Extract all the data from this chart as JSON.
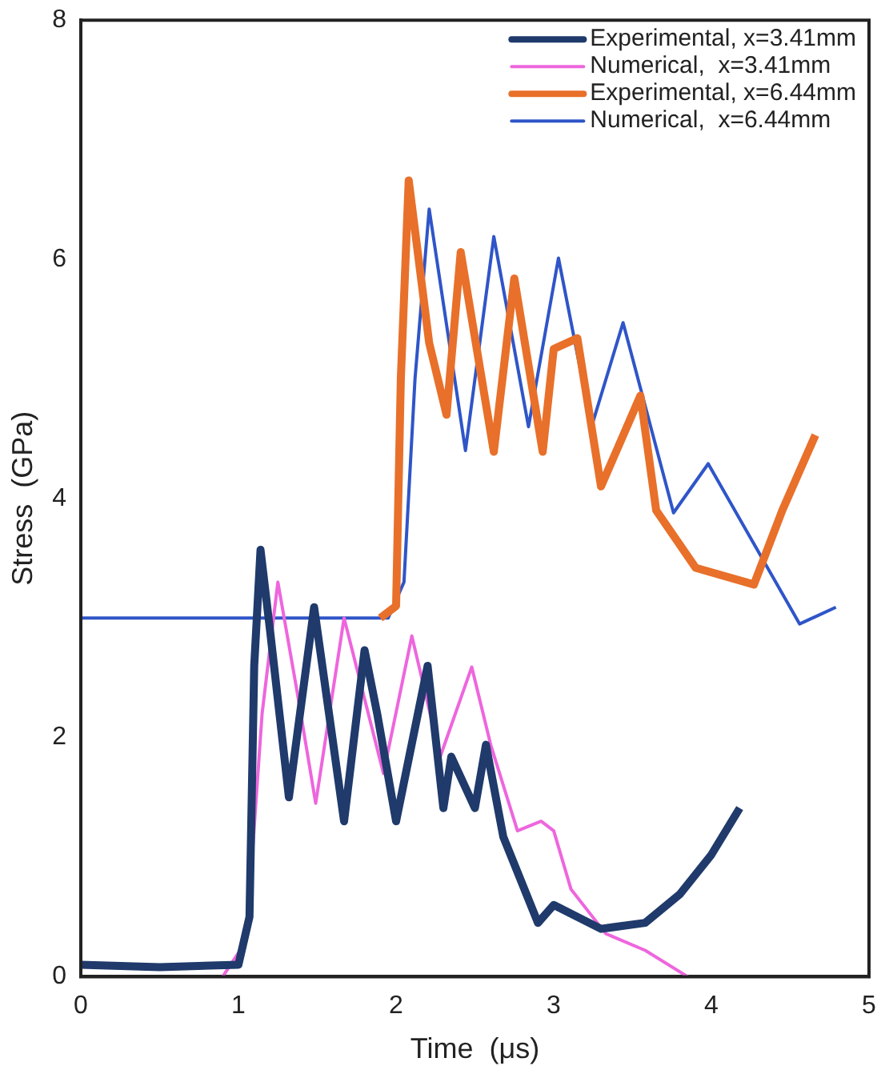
{
  "chart_data": {
    "type": "line",
    "xlabel": "Time  (μs)",
    "ylabel": "Stress  (GPa)",
    "xlim": [
      0,
      5
    ],
    "xticks": [
      0,
      1,
      2,
      3,
      4,
      5
    ],
    "ylim": [
      0,
      8
    ],
    "yticks": [
      0,
      2,
      4,
      6,
      8
    ],
    "grid": false,
    "legend": "top right",
    "marker": "none",
    "line_style": "solid",
    "series": [
      {
        "name": "Experimental, x=3.41mm",
        "color": "#1f3a6b",
        "x": [
          0,
          0.5,
          1.0,
          1.07,
          1.1,
          1.14,
          1.2,
          1.32,
          1.48,
          1.67,
          1.8,
          1.88,
          2.0,
          2.2,
          2.3,
          2.35,
          2.5,
          2.57,
          2.68,
          2.9,
          3.0,
          3.3,
          3.58,
          3.8,
          4.0,
          4.18
        ],
        "values": [
          0.1,
          0.08,
          0.1,
          0.5,
          2.6,
          3.57,
          2.9,
          1.5,
          3.09,
          1.3,
          2.73,
          2.2,
          1.3,
          2.6,
          1.41,
          1.84,
          1.41,
          1.94,
          1.17,
          0.45,
          0.6,
          0.4,
          0.45,
          0.69,
          1.02,
          1.41
        ]
      },
      {
        "name": "Numerical,  x=3.41mm",
        "color": "#ee66dd",
        "x": [
          0.9,
          1.05,
          1.15,
          1.25,
          1.37,
          1.49,
          1.67,
          1.92,
          2.1,
          2.28,
          2.48,
          2.6,
          2.77,
          2.92,
          3.0,
          3.11,
          3.33,
          3.58,
          3.85
        ],
        "values": [
          0,
          0.3,
          2.2,
          3.3,
          2.4,
          1.45,
          3.0,
          1.7,
          2.85,
          1.84,
          2.59,
          1.94,
          1.22,
          1.3,
          1.22,
          0.73,
          0.36,
          0.22,
          0
        ]
      },
      {
        "name": "Experimental, x=6.44mm",
        "color": "#e8702a",
        "x": [
          1.9,
          2.0,
          2.03,
          2.08,
          2.21,
          2.32,
          2.41,
          2.62,
          2.75,
          2.93,
          3.0,
          3.15,
          3.3,
          3.55,
          3.65,
          3.9,
          4.27,
          4.45,
          4.66
        ],
        "values": [
          3.0,
          3.1,
          5.0,
          6.66,
          5.3,
          4.7,
          6.06,
          4.39,
          5.84,
          4.39,
          5.25,
          5.34,
          4.1,
          4.86,
          3.9,
          3.42,
          3.28,
          3.9,
          4.53
        ]
      },
      {
        "name": "Numerical,  x=6.44mm",
        "color": "#2f55c8",
        "x": [
          0,
          1.95,
          2.05,
          2.12,
          2.21,
          2.44,
          2.62,
          2.84,
          3.03,
          3.24,
          3.44,
          3.76,
          3.98,
          4.56,
          4.79
        ],
        "values": [
          3.0,
          3.0,
          3.3,
          5.0,
          6.42,
          4.4,
          6.19,
          4.6,
          6.01,
          4.6,
          5.47,
          3.88,
          4.29,
          2.95,
          3.09
        ]
      }
    ]
  }
}
